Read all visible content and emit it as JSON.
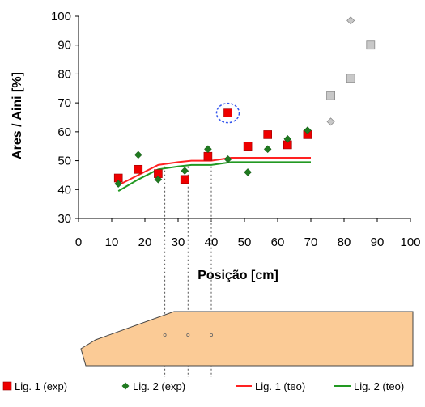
{
  "chart_data": {
    "type": "scatter",
    "xlabel": "Posição [cm]",
    "ylabel": "Ares / Aini [%]",
    "xlim": [
      0,
      100
    ],
    "ylim": [
      30,
      100
    ],
    "xticks": [
      "0",
      "10",
      "20",
      "30",
      "40",
      "50",
      "60",
      "70",
      "80",
      "90",
      "100"
    ],
    "yticks": [
      "30",
      "40",
      "50",
      "60",
      "70",
      "80",
      "90",
      "100"
    ],
    "grid": false,
    "legend_position": "bottom",
    "series": [
      {
        "name": "Lig. 1 (exp)",
        "kind": "marker-square",
        "color": "#ee0000",
        "points": [
          [
            12,
            44
          ],
          [
            18,
            47
          ],
          [
            24,
            45.5
          ],
          [
            32,
            43.5
          ],
          [
            39,
            51.5
          ],
          [
            45,
            66.5
          ],
          [
            51,
            55
          ],
          [
            57,
            59
          ],
          [
            63,
            55.5
          ],
          [
            69,
            59
          ]
        ]
      },
      {
        "name": "Lig. 2 (exp)",
        "kind": "marker-diamond",
        "color": "#1f7a1f",
        "points": [
          [
            12,
            42
          ],
          [
            18,
            52
          ],
          [
            24,
            43.5
          ],
          [
            32,
            46.5
          ],
          [
            39,
            54
          ],
          [
            45,
            50.5
          ],
          [
            51,
            46
          ],
          [
            57,
            54
          ],
          [
            63,
            57.5
          ],
          [
            69,
            60.5
          ]
        ]
      },
      {
        "name": "Lig. 1 (teo)",
        "kind": "line",
        "color": "#ff2222",
        "points": [
          [
            12,
            41.5
          ],
          [
            18,
            45
          ],
          [
            24,
            48.5
          ],
          [
            30,
            49.5
          ],
          [
            34,
            50
          ],
          [
            40,
            50
          ],
          [
            46,
            51
          ],
          [
            70,
            51
          ]
        ]
      },
      {
        "name": "Lig. 2 (teo)",
        "kind": "line",
        "color": "#229922",
        "points": [
          [
            12,
            39.5
          ],
          [
            18,
            43.5
          ],
          [
            24,
            47
          ],
          [
            30,
            48
          ],
          [
            34,
            48.5
          ],
          [
            40,
            48.5
          ],
          [
            46,
            49.5
          ],
          [
            70,
            49.5
          ]
        ]
      }
    ],
    "extra_points": {
      "gray_squares": [
        [
          76,
          72.5
        ],
        [
          82,
          78.5
        ],
        [
          88,
          90
        ]
      ],
      "gray_diamonds": [
        [
          76,
          63.5
        ],
        [
          82,
          98.5
        ]
      ]
    },
    "highlight_circle_at": [
      45,
      66.5
    ],
    "guide_lines_x": [
      26,
      33,
      40
    ],
    "colors": {
      "gray_marker": "#c8c8c8",
      "gray_border": "#888888",
      "highlight": "#3355ee",
      "shape_fill": "#fbcb96",
      "shape_stroke": "#444444",
      "guide": "#555555"
    }
  }
}
